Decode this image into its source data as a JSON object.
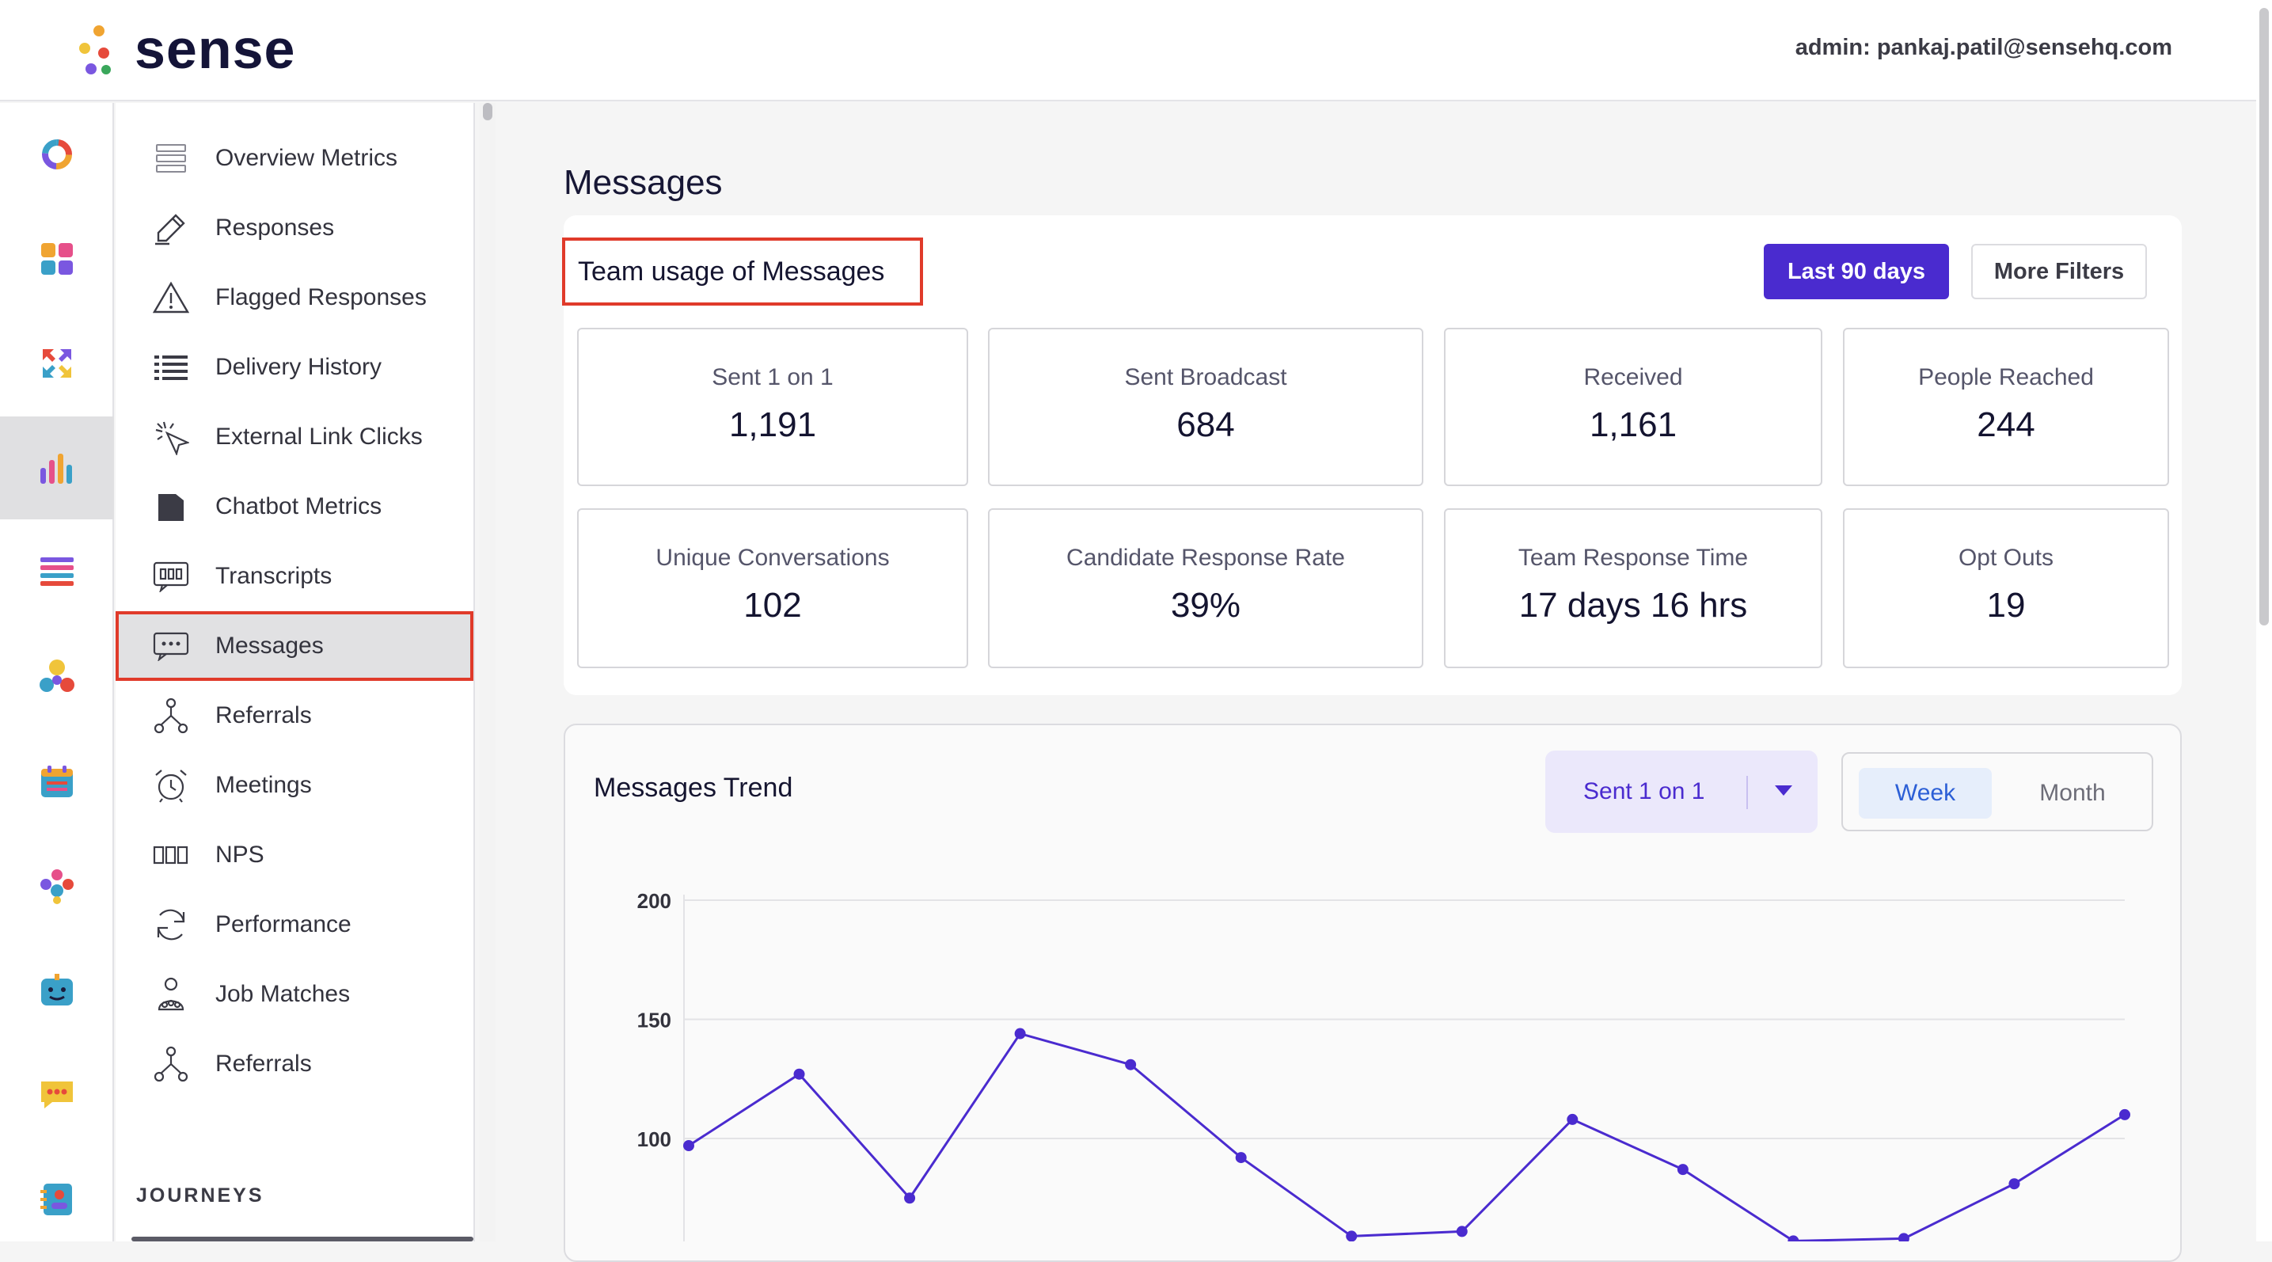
{
  "header": {
    "brand": "sense",
    "admin_text": "admin: pankaj.patil@sensehq.com"
  },
  "rail": {
    "items": [
      {
        "icon": "donut-icon"
      },
      {
        "icon": "apps-grid-icon"
      },
      {
        "icon": "arrows-exchange-icon"
      },
      {
        "icon": "bar-chart-icon",
        "active": true
      },
      {
        "icon": "list-icon"
      },
      {
        "icon": "people-icon"
      },
      {
        "icon": "calendar-icon"
      },
      {
        "icon": "team-icon"
      },
      {
        "icon": "bot-icon"
      },
      {
        "icon": "chat-icon"
      },
      {
        "icon": "contact-card-icon"
      }
    ]
  },
  "sidebar": {
    "items": [
      {
        "label": "Overview Metrics",
        "icon": "overview-icon"
      },
      {
        "label": "Responses",
        "icon": "pen-icon"
      },
      {
        "label": "Flagged Responses",
        "icon": "warning-icon"
      },
      {
        "label": "Delivery History",
        "icon": "list-lines-icon"
      },
      {
        "label": "External Link Clicks",
        "icon": "cursor-click-icon"
      },
      {
        "label": "Chatbot Metrics",
        "icon": "chatbot-icon"
      },
      {
        "label": "Transcripts",
        "icon": "transcript-icon"
      },
      {
        "label": "Messages",
        "icon": "message-icon",
        "active": true
      },
      {
        "label": "Referrals",
        "icon": "referral-icon"
      },
      {
        "label": "Meetings",
        "icon": "alarm-clock-icon"
      },
      {
        "label": "NPS",
        "icon": "nps-icon"
      },
      {
        "label": "Performance",
        "icon": "refresh-icon"
      },
      {
        "label": "Job Matches",
        "icon": "job-match-icon"
      },
      {
        "label": "Referrals",
        "icon": "referral-icon"
      }
    ],
    "section_heading": "JOURNEYS"
  },
  "main": {
    "page_title": "Messages",
    "usage": {
      "title": "Team usage of Messages",
      "date_button": "Last 90 days",
      "filters_button": "More Filters",
      "stats": [
        {
          "label": "Sent 1 on 1",
          "value": "1,191"
        },
        {
          "label": "Sent Broadcast",
          "value": "684"
        },
        {
          "label": "Received",
          "value": "1,161"
        },
        {
          "label": "People Reached",
          "value": "244"
        },
        {
          "label": "Unique Conversations",
          "value": "102"
        },
        {
          "label": "Candidate Response Rate",
          "value": "39%"
        },
        {
          "label": "Team Response Time",
          "value": "17 days 16 hrs"
        },
        {
          "label": "Opt Outs",
          "value": "19"
        }
      ]
    },
    "trend": {
      "title": "Messages Trend",
      "metric_select": "Sent 1 on 1",
      "toggle": {
        "week": "Week",
        "month": "Month",
        "selected": "Week"
      }
    }
  },
  "chart_data": {
    "type": "line",
    "title": "Messages Trend",
    "xlabel": "",
    "ylabel": "",
    "y_ticks": [
      100,
      150,
      200
    ],
    "ylim_visible": [
      50,
      200
    ],
    "grid": true,
    "series": [
      {
        "color": "#4a2bcf",
        "values": [
          97,
          127,
          75,
          144,
          131,
          92,
          59,
          61,
          108,
          87,
          57,
          58,
          81,
          110
        ]
      }
    ]
  }
}
